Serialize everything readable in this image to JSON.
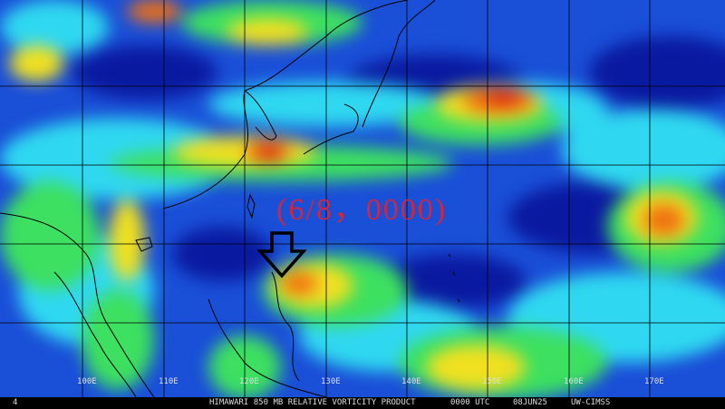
{
  "map": {
    "product_title": "HIMAWARI 850 MB RELATIVE VORTICITY PRODUCT",
    "time": "0000 UTC",
    "date": "08JUN25",
    "source": "UW-CIMSS",
    "corner_mark": "4",
    "longitude_labels": [
      "100E",
      "110E",
      "120E",
      "130E",
      "140E",
      "150E",
      "160E",
      "170E"
    ],
    "annotation": "(6/8，0000)",
    "annotation_color": "#d8243a",
    "marker_icon": "down-arrow-icon",
    "colors": {
      "low": "#0a1aa0",
      "mid_low": "#1a4fd8",
      "mid": "#2fd8f0",
      "mid_high": "#3de060",
      "high": "#f0e020",
      "very_high": "#f07010",
      "peak": "#e02010"
    }
  }
}
